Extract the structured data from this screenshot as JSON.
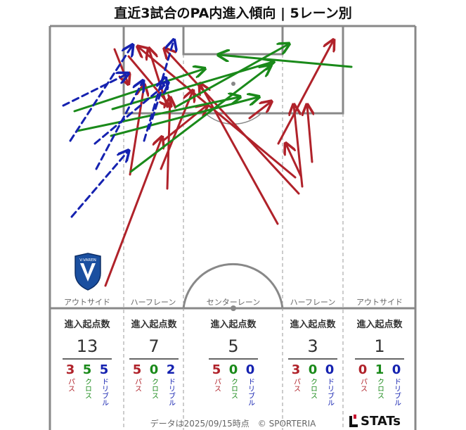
{
  "title": "直近3試合のPA内進入傾向 | 5レーン別",
  "colors": {
    "pass": "#b0222a",
    "cross": "#1a8a1a",
    "dribble": "#1522b0",
    "line": "#888888"
  },
  "chart_data": {
    "type": "arrow-map",
    "title": "直近3試合のPA内進入傾向 | 5レーン別",
    "lanes": [
      {
        "name": "アウトサイド",
        "head": "進入起点数",
        "total": "13",
        "pass": "3",
        "cross": "5",
        "dribble": "5",
        "pass_label": "パス",
        "cross_label": "クロス",
        "dribble_label": "ドリブル"
      },
      {
        "name": "ハーフレーン",
        "head": "進入起点数",
        "total": "7",
        "pass": "5",
        "cross": "0",
        "dribble": "2",
        "pass_label": "パス",
        "cross_label": "クロス",
        "dribble_label": "ドリブル"
      },
      {
        "name": "センターレーン",
        "head": "進入起点数",
        "total": "5",
        "pass": "5",
        "cross": "0",
        "dribble": "0",
        "pass_label": "パス",
        "cross_label": "クロス",
        "dribble_label": "ドリブル"
      },
      {
        "name": "ハーフレーン",
        "head": "進入起点数",
        "total": "3",
        "pass": "3",
        "cross": "0",
        "dribble": "0",
        "pass_label": "パス",
        "cross_label": "クロス",
        "dribble_label": "ドリブル"
      },
      {
        "name": "アウトサイド",
        "head": "進入起点数",
        "total": "1",
        "pass": "0",
        "cross": "1",
        "dribble": "0",
        "pass_label": "パス",
        "cross_label": "クロス",
        "dribble_label": "ドリブル"
      }
    ],
    "arrows": [
      {
        "kind": "pass",
        "from": [
          150,
          406
        ],
        "to": [
          230,
          196
        ]
      },
      {
        "kind": "pass",
        "from": [
          163,
          70
        ],
        "to": [
          182,
          118
        ]
      },
      {
        "kind": "pass",
        "from": [
          185,
          248
        ],
        "to": [
          205,
          122
        ]
      },
      {
        "kind": "pass",
        "from": [
          183,
          80
        ],
        "to": [
          242,
          150
        ]
      },
      {
        "kind": "pass",
        "from": [
          238,
          268
        ],
        "to": [
          242,
          140
        ]
      },
      {
        "kind": "pass",
        "from": [
          229,
          240
        ],
        "to": [
          274,
          130
        ]
      },
      {
        "kind": "pass",
        "from": [
          232,
          200
        ],
        "to": [
          294,
          150
        ]
      },
      {
        "kind": "pass",
        "from": [
          238,
          152
        ],
        "to": [
          212,
          70
        ]
      },
      {
        "kind": "pass",
        "from": [
          395,
          318
        ],
        "to": [
          285,
          120
        ]
      },
      {
        "kind": "pass",
        "from": [
          428,
          250
        ],
        "to": [
          407,
          205
        ]
      },
      {
        "kind": "pass",
        "from": [
          430,
          265
        ],
        "to": [
          418,
          150
        ]
      },
      {
        "kind": "pass",
        "from": [
          420,
          252
        ],
        "to": [
          197,
          67
        ]
      },
      {
        "kind": "pass",
        "from": [
          425,
          275
        ],
        "to": [
          235,
          70
        ]
      },
      {
        "kind": "pass",
        "from": [
          444,
          230
        ],
        "to": [
          437,
          150
        ]
      },
      {
        "kind": "pass",
        "from": [
          396,
          204
        ],
        "to": [
          474,
          58
        ]
      },
      {
        "kind": "pass",
        "from": [
          355,
          168
        ],
        "to": [
          385,
          145
        ]
      },
      {
        "kind": "cross",
        "from": [
          106,
          158
        ],
        "to": [
          290,
          98
        ]
      },
      {
        "kind": "cross",
        "from": [
          110,
          186
        ],
        "to": [
          340,
          138
        ]
      },
      {
        "kind": "cross",
        "from": [
          158,
          193
        ],
        "to": [
          367,
          138
        ]
      },
      {
        "kind": "cross",
        "from": [
          186,
          244
        ],
        "to": [
          384,
          94
        ]
      },
      {
        "kind": "cross",
        "from": [
          160,
          155
        ],
        "to": [
          388,
          88
        ]
      },
      {
        "kind": "cross",
        "from": [
          500,
          95
        ],
        "to": [
          312,
          78
        ]
      },
      {
        "kind": "cross",
        "from": [
          250,
          152
        ],
        "to": [
          410,
          63
        ]
      },
      {
        "kind": "dribble",
        "from": [
          90,
          150
        ],
        "to": [
          181,
          105
        ]
      },
      {
        "kind": "dribble",
        "from": [
          100,
          200
        ],
        "to": [
          188,
          65
        ]
      },
      {
        "kind": "dribble",
        "from": [
          102,
          308
        ],
        "to": [
          182,
          215
        ]
      },
      {
        "kind": "dribble",
        "from": [
          135,
          204
        ],
        "to": [
          238,
          118
        ]
      },
      {
        "kind": "dribble",
        "from": [
          137,
          240
        ],
        "to": [
          203,
          116
        ]
      },
      {
        "kind": "dribble",
        "from": [
          205,
          200
        ],
        "to": [
          247,
          58
        ]
      },
      {
        "kind": "dribble",
        "from": [
          212,
          183
        ],
        "to": [
          235,
          112
        ]
      }
    ]
  },
  "footer": "データは2025/09/15時点　© SPORTERIA",
  "logo_text": "STATs",
  "badge_text": "V-VAREN"
}
